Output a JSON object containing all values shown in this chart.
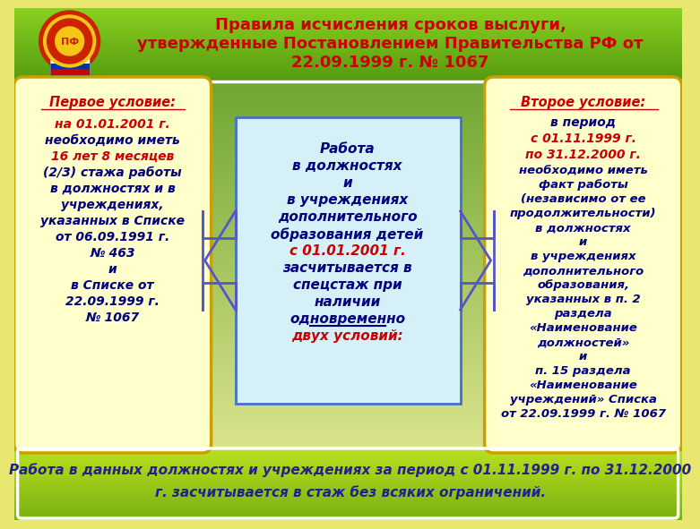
{
  "title_line1": "Правила исчисления сроков выслуги,",
  "title_line2": "утвержденные Постановлением Правительства РФ от",
  "title_line3": "22.09.1999 г. № 1067",
  "title_color": "#cc0000",
  "center_box_bg": "#d6f0f8",
  "center_box_border": "#4472c4",
  "left_box_bg": "#ffffcc",
  "left_box_border": "#c8a000",
  "right_box_bg": "#ffffcc",
  "right_box_border": "#c8a000",
  "arrow_color": "#5555cc",
  "footer_border": "#6ab04c",
  "left_title": "Первое условие:",
  "right_title": "Второе условие:",
  "footer_text_red": "Работа в данных должностях и учреждениях за период с 01.11.1999 г. по 31.12.2000",
  "footer_text_red2": "г. засчитывается в стаж без всяких ограничений."
}
